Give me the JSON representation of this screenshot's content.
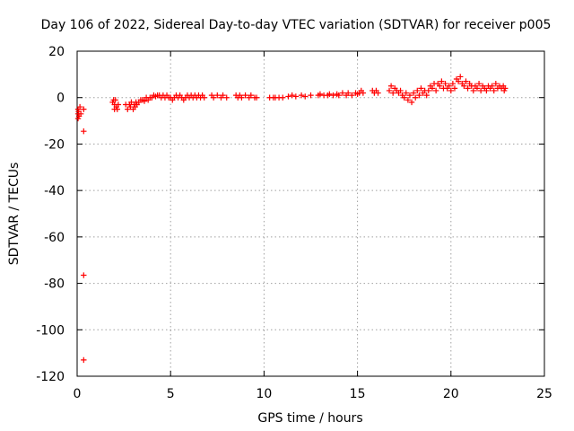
{
  "chart_data": {
    "type": "scatter",
    "title": "Day 106 of 2022, Sidereal Day-to-day VTEC variation (SDTVAR) for receiver p005",
    "xlabel": "GPS time / hours",
    "ylabel": "SDTVAR / TECUs",
    "xlim": [
      0,
      25
    ],
    "ylim": [
      -120,
      20
    ],
    "xticks": [
      0,
      5,
      10,
      15,
      20,
      25
    ],
    "yticks": [
      -120,
      -100,
      -80,
      -60,
      -40,
      -20,
      0,
      20
    ],
    "grid": true,
    "marker": "+",
    "color": "#ff0000",
    "series": [
      {
        "name": "p005",
        "points": [
          [
            0.05,
            -5
          ],
          [
            0.05,
            -7
          ],
          [
            0.05,
            -9
          ],
          [
            0.08,
            -6
          ],
          [
            0.1,
            -8
          ],
          [
            0.15,
            -4
          ],
          [
            0.2,
            -7
          ],
          [
            0.35,
            -5
          ],
          [
            0.35,
            -14.5
          ],
          [
            0.35,
            -76.5
          ],
          [
            0.35,
            -113
          ],
          [
            1.9,
            -2
          ],
          [
            1.95,
            -1
          ],
          [
            2.0,
            -5
          ],
          [
            2.0,
            -3
          ],
          [
            2.05,
            -1
          ],
          [
            2.1,
            -4
          ],
          [
            2.15,
            -5
          ],
          [
            2.2,
            -3
          ],
          [
            2.6,
            -3
          ],
          [
            2.7,
            -5
          ],
          [
            2.8,
            -3
          ],
          [
            2.85,
            -4
          ],
          [
            2.9,
            -2
          ],
          [
            3.0,
            -5
          ],
          [
            3.05,
            -3
          ],
          [
            3.1,
            -4
          ],
          [
            3.15,
            -2
          ],
          [
            3.2,
            -3
          ],
          [
            3.3,
            -2
          ],
          [
            3.4,
            -1
          ],
          [
            3.5,
            -1
          ],
          [
            3.6,
            -1.5
          ],
          [
            3.7,
            0
          ],
          [
            3.8,
            -1
          ],
          [
            3.9,
            0
          ],
          [
            4.0,
            0
          ],
          [
            4.1,
            1
          ],
          [
            4.2,
            0.5
          ],
          [
            4.3,
            1
          ],
          [
            4.4,
            1
          ],
          [
            4.5,
            0
          ],
          [
            4.6,
            1
          ],
          [
            4.7,
            0
          ],
          [
            4.8,
            1
          ],
          [
            4.9,
            0
          ],
          [
            5.0,
            0
          ],
          [
            5.1,
            -1
          ],
          [
            5.2,
            0
          ],
          [
            5.3,
            1
          ],
          [
            5.4,
            0
          ],
          [
            5.5,
            1
          ],
          [
            5.6,
            0
          ],
          [
            5.7,
            -1
          ],
          [
            5.8,
            0
          ],
          [
            5.9,
            1
          ],
          [
            6.0,
            0
          ],
          [
            6.1,
            1
          ],
          [
            6.2,
            0
          ],
          [
            6.3,
            1
          ],
          [
            6.4,
            0
          ],
          [
            6.5,
            1
          ],
          [
            6.6,
            0
          ],
          [
            6.7,
            1
          ],
          [
            6.8,
            0
          ],
          [
            7.2,
            1
          ],
          [
            7.3,
            0
          ],
          [
            7.5,
            1
          ],
          [
            7.7,
            0
          ],
          [
            7.8,
            1
          ],
          [
            8.0,
            0
          ],
          [
            8.5,
            1
          ],
          [
            8.6,
            0
          ],
          [
            8.7,
            1
          ],
          [
            8.8,
            0
          ],
          [
            9.0,
            1
          ],
          [
            9.2,
            0
          ],
          [
            9.3,
            1
          ],
          [
            9.5,
            0
          ],
          [
            9.6,
            0
          ],
          [
            10.3,
            0
          ],
          [
            10.5,
            0
          ],
          [
            10.6,
            0
          ],
          [
            10.8,
            0
          ],
          [
            11.0,
            0
          ],
          [
            11.3,
            0.5
          ],
          [
            11.5,
            1
          ],
          [
            11.7,
            0.5
          ],
          [
            12.0,
            1
          ],
          [
            12.2,
            0.5
          ],
          [
            12.5,
            1
          ],
          [
            12.9,
            1
          ],
          [
            13.0,
            1.5
          ],
          [
            13.2,
            1
          ],
          [
            13.4,
            1
          ],
          [
            13.5,
            1.5
          ],
          [
            13.7,
            1
          ],
          [
            13.9,
            1.5
          ],
          [
            14.0,
            1
          ],
          [
            14.2,
            2
          ],
          [
            14.4,
            1
          ],
          [
            14.5,
            2
          ],
          [
            14.7,
            1
          ],
          [
            14.9,
            2
          ],
          [
            15.0,
            1.5
          ],
          [
            15.1,
            2
          ],
          [
            15.2,
            3
          ],
          [
            15.3,
            2
          ],
          [
            15.8,
            3
          ],
          [
            15.9,
            2
          ],
          [
            16.0,
            3
          ],
          [
            16.1,
            2
          ],
          [
            16.7,
            3
          ],
          [
            16.8,
            5
          ],
          [
            16.9,
            2
          ],
          [
            17.0,
            4
          ],
          [
            17.1,
            3
          ],
          [
            17.2,
            2
          ],
          [
            17.3,
            3
          ],
          [
            17.4,
            1
          ],
          [
            17.5,
            0
          ],
          [
            17.6,
            2
          ],
          [
            17.7,
            -1
          ],
          [
            17.8,
            1
          ],
          [
            17.9,
            -2
          ],
          [
            18.0,
            2
          ],
          [
            18.1,
            0
          ],
          [
            18.2,
            3
          ],
          [
            18.3,
            1
          ],
          [
            18.4,
            4
          ],
          [
            18.5,
            2
          ],
          [
            18.6,
            3
          ],
          [
            18.7,
            1
          ],
          [
            18.8,
            3
          ],
          [
            18.9,
            5
          ],
          [
            19.0,
            4
          ],
          [
            19.1,
            6
          ],
          [
            19.2,
            3
          ],
          [
            19.3,
            6
          ],
          [
            19.4,
            5
          ],
          [
            19.5,
            7
          ],
          [
            19.6,
            4
          ],
          [
            19.7,
            6
          ],
          [
            19.8,
            4
          ],
          [
            19.9,
            5
          ],
          [
            20.0,
            3
          ],
          [
            20.1,
            6
          ],
          [
            20.2,
            4
          ],
          [
            20.3,
            8
          ],
          [
            20.4,
            7
          ],
          [
            20.5,
            9
          ],
          [
            20.6,
            6
          ],
          [
            20.7,
            5
          ],
          [
            20.8,
            7
          ],
          [
            20.9,
            4
          ],
          [
            21.0,
            6
          ],
          [
            21.1,
            5
          ],
          [
            21.2,
            3
          ],
          [
            21.3,
            5
          ],
          [
            21.4,
            4
          ],
          [
            21.5,
            6
          ],
          [
            21.6,
            3
          ],
          [
            21.7,
            5
          ],
          [
            21.8,
            4
          ],
          [
            21.9,
            3
          ],
          [
            22.0,
            5
          ],
          [
            22.1,
            4
          ],
          [
            22.2,
            5
          ],
          [
            22.3,
            3
          ],
          [
            22.4,
            6
          ],
          [
            22.5,
            4
          ],
          [
            22.6,
            5
          ],
          [
            22.7,
            4
          ],
          [
            22.8,
            5
          ],
          [
            22.85,
            3
          ],
          [
            22.9,
            4
          ]
        ]
      }
    ]
  }
}
